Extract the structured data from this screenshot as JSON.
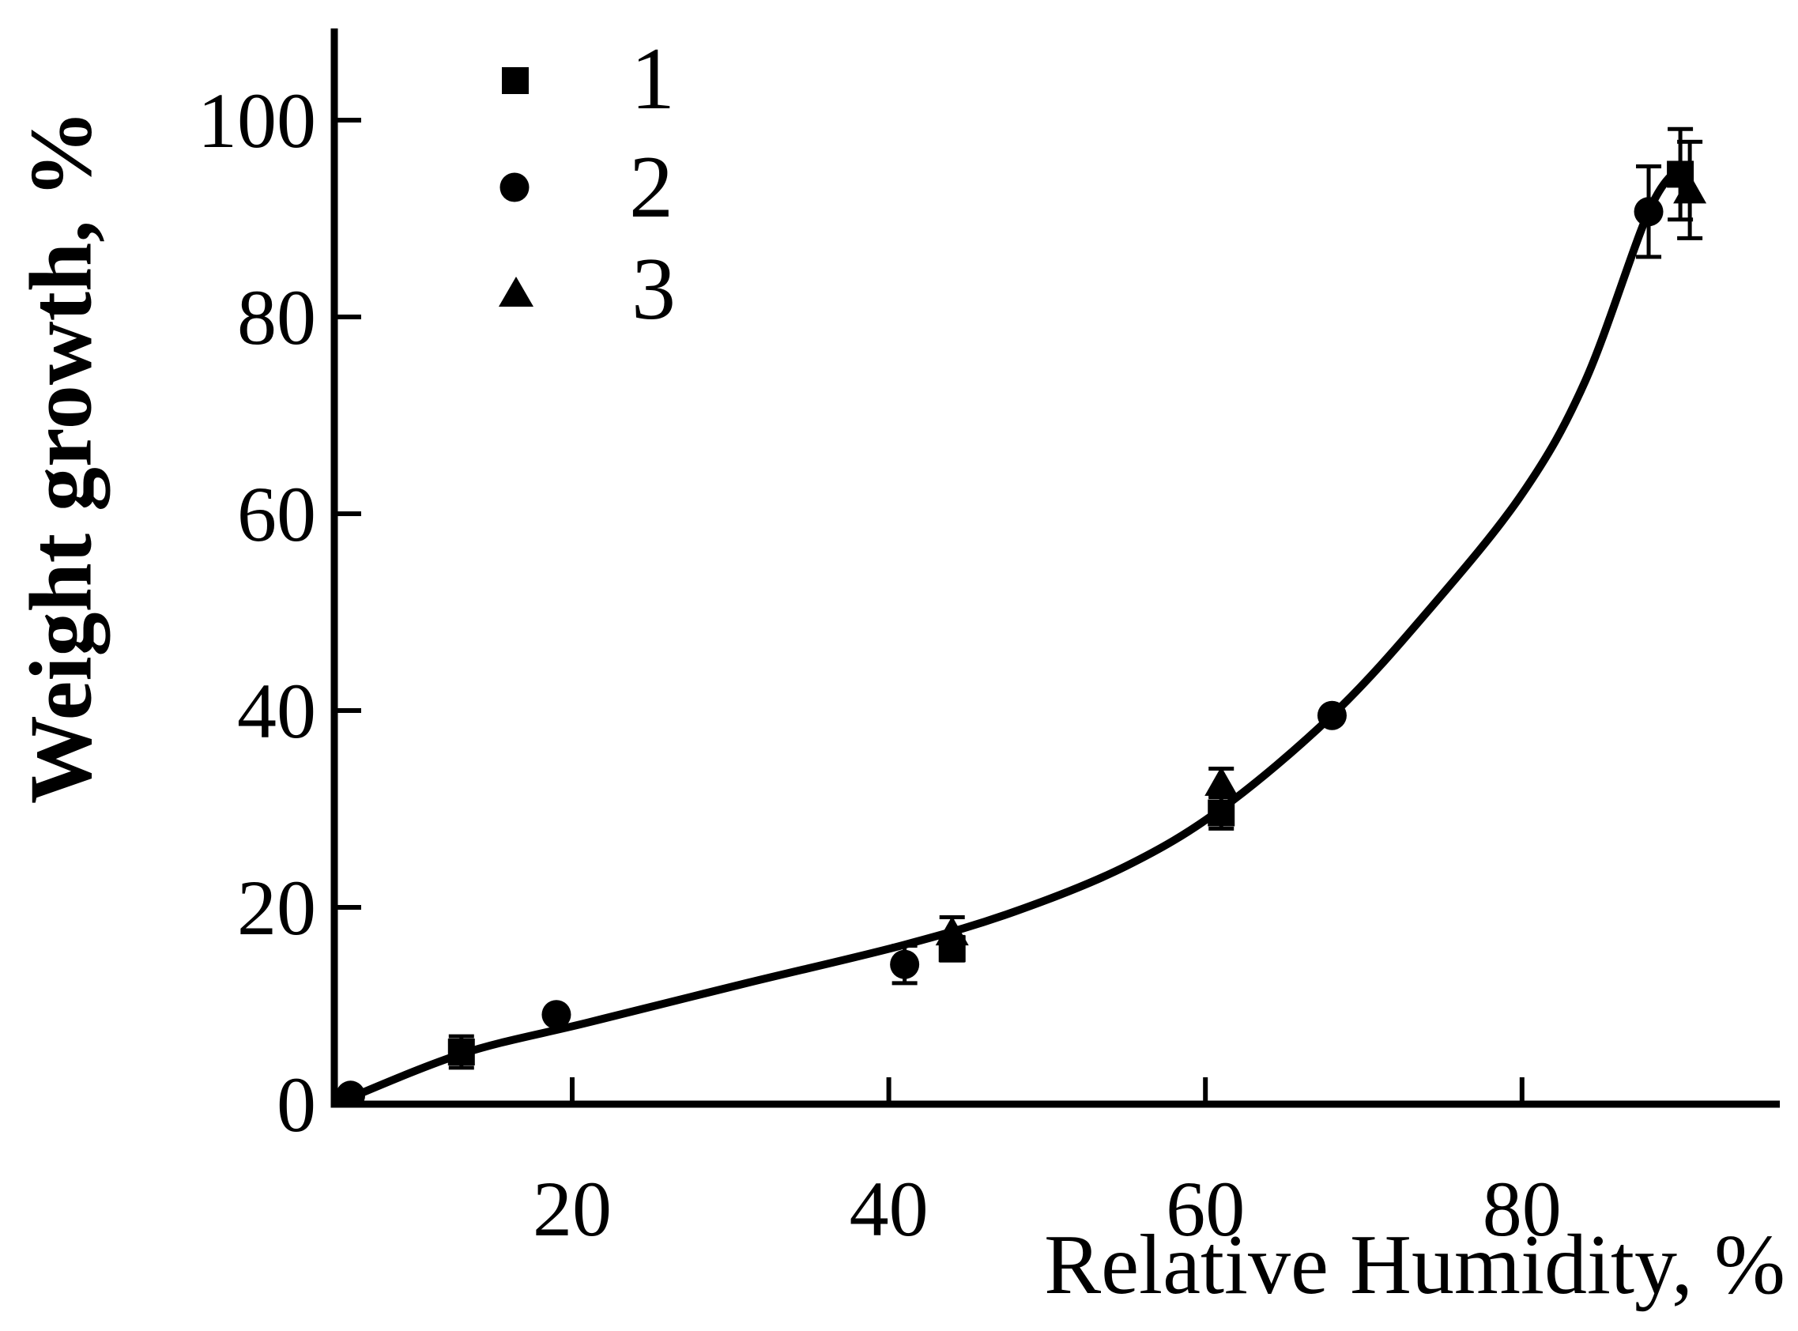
{
  "figure": {
    "background_color": "#ffffff",
    "ink_color": "#000000"
  },
  "chart_data": {
    "type": "scatter",
    "title": "",
    "xlabel": "Relative Humidity, %",
    "ylabel": "Weight growth, %",
    "xlim": [
      5,
      97
    ],
    "ylim": [
      0,
      110
    ],
    "x_ticks": [
      20,
      40,
      60,
      80
    ],
    "y_ticks": [
      0,
      20,
      40,
      60,
      80,
      100
    ],
    "grid": false,
    "legend_position": "top-left-inside",
    "series": [
      {
        "name": "1",
        "marker": "square",
        "points": [
          {
            "x": 13,
            "y": 5.3,
            "err": 1.6
          },
          {
            "x": 44,
            "y": 15.8,
            "err": 1.2
          },
          {
            "x": 61,
            "y": 29.6,
            "err": 1.6
          },
          {
            "x": 90,
            "y": 94.5,
            "err": 4.6
          }
        ]
      },
      {
        "name": "2",
        "marker": "circle",
        "points": [
          {
            "x": 6,
            "y": 0.9,
            "err": 0
          },
          {
            "x": 19,
            "y": 9.1,
            "err": 0
          },
          {
            "x": 41,
            "y": 14.2,
            "err": 1.9
          },
          {
            "x": 68,
            "y": 39.5,
            "err": 0
          },
          {
            "x": 88,
            "y": 90.7,
            "err": 4.6
          }
        ]
      },
      {
        "name": "3",
        "marker": "triangle",
        "points": [
          {
            "x": 44,
            "y": 17.5,
            "err": 1.5
          },
          {
            "x": 61,
            "y": 32.7,
            "err": 1.4
          },
          {
            "x": 90.6,
            "y": 92.9,
            "err": 4.9
          }
        ]
      }
    ],
    "fit_curve": {
      "description": "single smooth trend curve through all series",
      "points": [
        [
          5,
          0
        ],
        [
          13,
          5.1
        ],
        [
          21,
          8.3
        ],
        [
          31,
          12.3
        ],
        [
          41,
          16.2
        ],
        [
          48,
          19.6
        ],
        [
          55,
          24.2
        ],
        [
          61,
          30.0
        ],
        [
          68,
          39.5
        ],
        [
          74,
          50.0
        ],
        [
          80,
          62.0
        ],
        [
          84,
          73.5
        ],
        [
          88,
          90.7
        ],
        [
          90,
          95.3
        ]
      ]
    }
  }
}
